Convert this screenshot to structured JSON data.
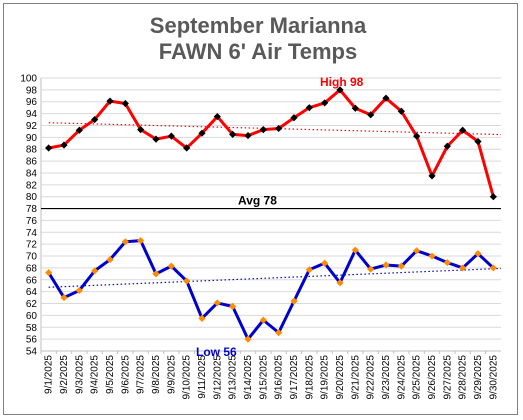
{
  "chart_data": {
    "type": "line",
    "title": "September Marianna",
    "subtitle": "FAWN 6' Air Temps",
    "xlabel": "",
    "ylabel": "",
    "ylim": [
      54,
      100
    ],
    "y_tick_step": 2,
    "grid": "horizontal",
    "legend": "none",
    "categories": [
      "9/1/2025",
      "9/2/2025",
      "9/3/2025",
      "9/4/2025",
      "9/5/2025",
      "9/6/2025",
      "9/7/2025",
      "9/8/2025",
      "9/9/2025",
      "9/10/2025",
      "9/11/2025",
      "9/12/2025",
      "9/13/2025",
      "9/14/2025",
      "9/15/2025",
      "9/16/2025",
      "9/17/2025",
      "9/18/2025",
      "9/19/2025",
      "9/20/2025",
      "9/21/2025",
      "9/22/2025",
      "9/23/2025",
      "9/24/2025",
      "9/25/2025",
      "9/26/2025",
      "9/27/2025",
      "9/28/2025",
      "9/29/2025",
      "9/30/2025"
    ],
    "series": [
      {
        "key": "high",
        "line_color": "#ff0000",
        "marker_color": "#000000",
        "trend_color": "#ff0000",
        "values": [
          88.2,
          88.7,
          91.2,
          93.0,
          96.1,
          95.7,
          91.3,
          89.7,
          90.2,
          88.2,
          90.7,
          93.5,
          90.5,
          90.3,
          91.3,
          91.5,
          93.3,
          95.0,
          95.8,
          98.0,
          94.9,
          93.8,
          96.6,
          94.4,
          90.2,
          83.5,
          88.5,
          91.2,
          89.3,
          80.0
        ]
      },
      {
        "key": "low",
        "line_color": "#0000cc",
        "marker_color": "#ff8c00",
        "trend_color": "#0000cc",
        "values": [
          67.2,
          63.0,
          64.2,
          67.5,
          69.4,
          72.4,
          72.6,
          67.0,
          68.3,
          65.8,
          59.5,
          62.1,
          61.5,
          56.0,
          59.2,
          57.1,
          62.4,
          67.7,
          68.8,
          65.5,
          71.0,
          67.8,
          68.5,
          68.3,
          70.9,
          70.0,
          68.9,
          68.0,
          70.4,
          68.0
        ]
      }
    ],
    "reference_line": {
      "value": 78,
      "label": "Avg 78",
      "color": "#000000"
    },
    "annotations": [
      {
        "text": "High 98",
        "color": "#ff0000"
      },
      {
        "text": "Low 56",
        "color": "#0000cc"
      }
    ]
  }
}
